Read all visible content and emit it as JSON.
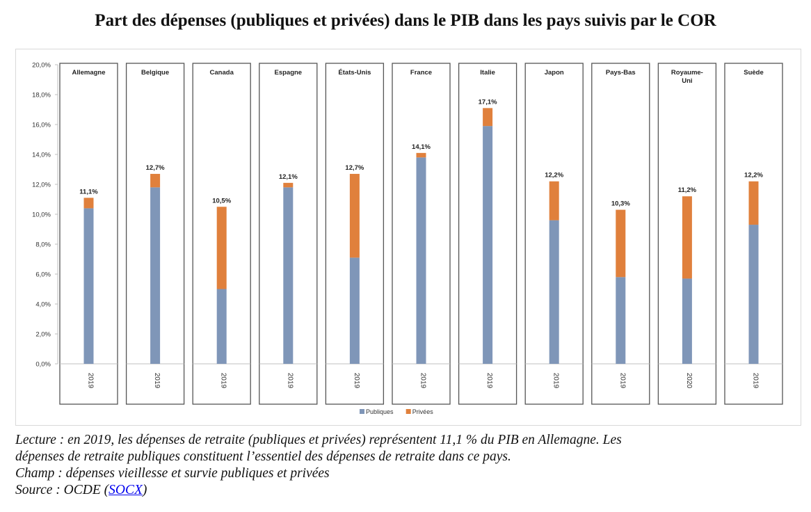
{
  "title": "Part des dépenses (publiques et privées) dans le PIB dans les pays suivis par le COR",
  "chart_data": {
    "type": "bar",
    "stacked": true,
    "categories": [
      "Allemagne",
      "Belgique",
      "Canada",
      "Espagne",
      "États-Unis",
      "France",
      "Italie",
      "Japon",
      "Pays-Bas",
      "Royaume-Uni",
      "Suède"
    ],
    "years": [
      "2019",
      "2019",
      "2019",
      "2019",
      "2019",
      "2019",
      "2019",
      "2019",
      "2019",
      "2020",
      "2019"
    ],
    "series": [
      {
        "name": "Publiques",
        "color": "#7f96b8",
        "values": [
          10.4,
          11.8,
          5.0,
          11.8,
          7.1,
          13.8,
          15.9,
          9.6,
          5.8,
          5.7,
          9.3
        ]
      },
      {
        "name": "Privées",
        "color": "#e0803c",
        "values": [
          0.7,
          0.9,
          5.5,
          0.3,
          5.6,
          0.3,
          1.2,
          2.6,
          4.5,
          5.5,
          2.9
        ]
      }
    ],
    "total_labels": [
      "11,1%",
      "12,7%",
      "10,5%",
      "12,1%",
      "12,7%",
      "14,1%",
      "17,1%",
      "12,2%",
      "10,3%",
      "11,2%",
      "12,2%"
    ],
    "ylim": [
      0,
      20
    ],
    "yticks": [
      "0,0%",
      "2,0%",
      "4,0%",
      "6,0%",
      "8,0%",
      "10,0%",
      "12,0%",
      "14,0%",
      "16,0%",
      "18,0%",
      "20,0%"
    ],
    "legend_position": "bottom-center"
  },
  "captions": {
    "line1": "Lecture : en 2019, les dépenses de retraite (publiques et privées) représentent 11,1 % du PIB en Allemagne. Les",
    "line2": "dépenses de retraite publiques constituent l’essentiel des dépenses de retraite dans ce pays.",
    "line3": "Champ : dépenses vieillesse et survie publiques et privées",
    "line4_prefix": "Source : OCDE (",
    "line4_link": "SOCX",
    "line4_suffix": ")"
  }
}
